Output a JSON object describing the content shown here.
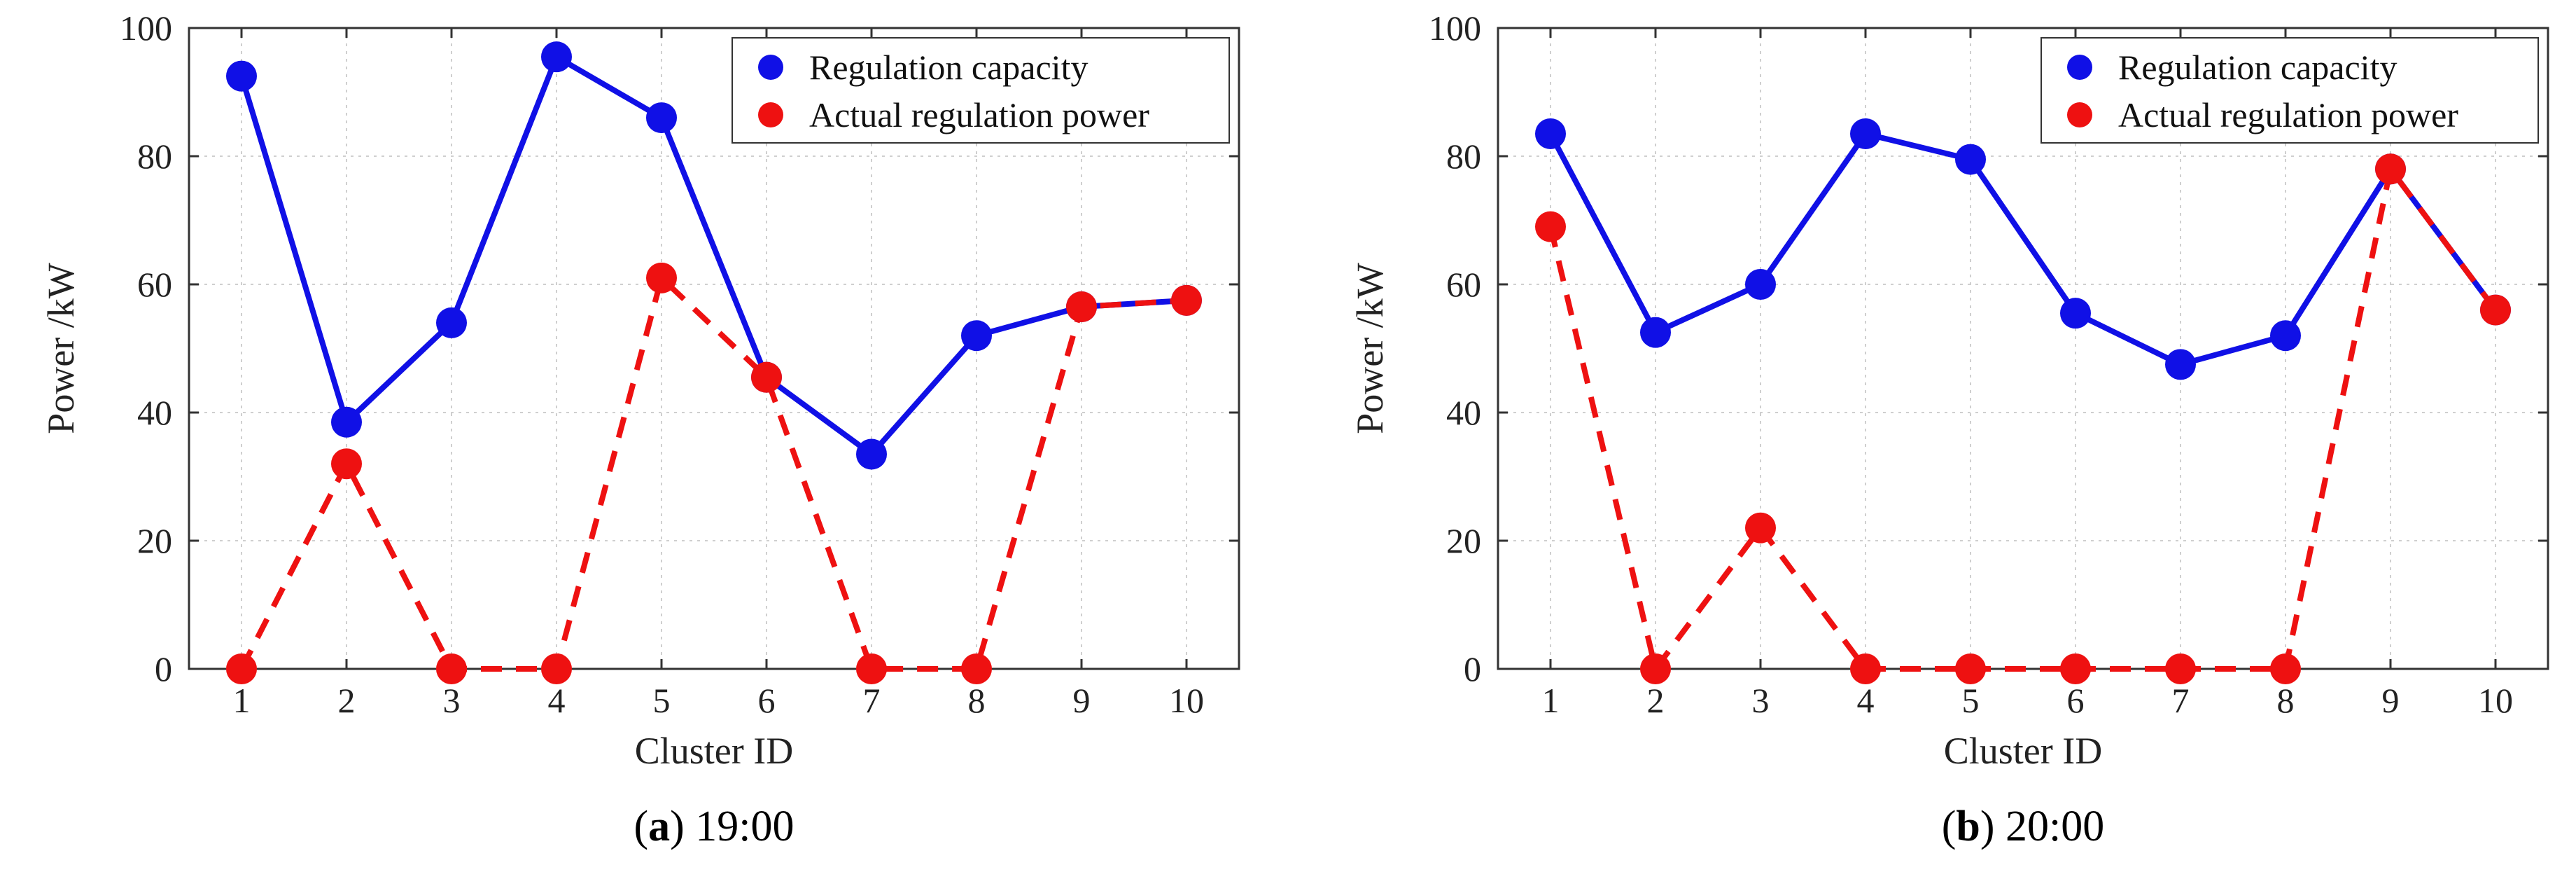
{
  "chart_data": [
    {
      "type": "line",
      "panel_label": "a",
      "caption_time": "19:00",
      "xlabel": "Cluster ID",
      "ylabel": "Power /kW",
      "xlim": [
        0.5,
        10.5
      ],
      "ylim": [
        0,
        100
      ],
      "x": [
        1,
        2,
        3,
        4,
        5,
        6,
        7,
        8,
        9,
        10
      ],
      "xticks": [
        "1",
        "2",
        "3",
        "4",
        "5",
        "6",
        "7",
        "8",
        "9",
        "10"
      ],
      "yticks": [
        "0",
        "20",
        "40",
        "60",
        "80",
        "100"
      ],
      "grid": true,
      "legend_position": "top-right",
      "series": [
        {
          "name": "Regulation capacity",
          "color": "#1010e6",
          "style": "solid",
          "values": [
            92.5,
            38.5,
            54,
            95.5,
            86,
            45.5,
            33.5,
            52,
            56.5,
            57.5
          ]
        },
        {
          "name": "Actual regulation power",
          "color": "#ee1111",
          "style": "dashed",
          "values": [
            0,
            32,
            0,
            0,
            61,
            45.5,
            0,
            0,
            56.5,
            57.5
          ]
        }
      ]
    },
    {
      "type": "line",
      "panel_label": "b",
      "caption_time": "20:00",
      "xlabel": "Cluster ID",
      "ylabel": "Power /kW",
      "xlim": [
        0.5,
        10.5
      ],
      "ylim": [
        0,
        100
      ],
      "x": [
        1,
        2,
        3,
        4,
        5,
        6,
        7,
        8,
        9,
        10
      ],
      "xticks": [
        "1",
        "2",
        "3",
        "4",
        "5",
        "6",
        "7",
        "8",
        "9",
        "10"
      ],
      "yticks": [
        "0",
        "20",
        "40",
        "60",
        "80",
        "100"
      ],
      "grid": true,
      "legend_position": "top-right",
      "series": [
        {
          "name": "Regulation capacity",
          "color": "#1010e6",
          "style": "solid",
          "values": [
            83.5,
            52.5,
            60,
            83.5,
            79.5,
            55.5,
            47.5,
            52,
            78,
            56
          ]
        },
        {
          "name": "Actual regulation power",
          "color": "#ee1111",
          "style": "dashed",
          "values": [
            69,
            0,
            22,
            0,
            0,
            0,
            0,
            0,
            78,
            56
          ]
        }
      ]
    }
  ]
}
